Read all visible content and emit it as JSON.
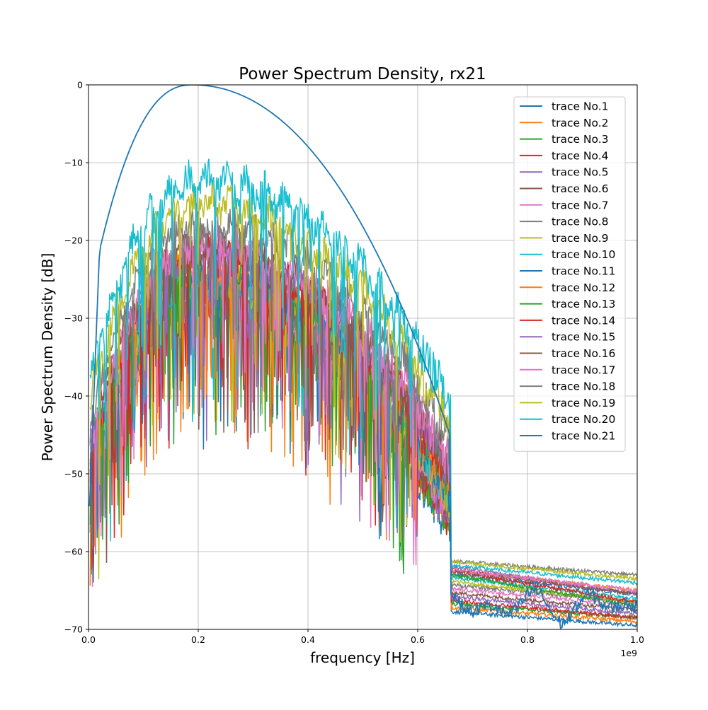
{
  "chart_data": {
    "type": "line",
    "title": "Power Spectrum Density, rx21",
    "xlabel": "frequency [Hz]",
    "ylabel": "Power Spectrum Density [dB]",
    "x_offset_text": "1e9",
    "xlim": [
      0.0,
      1.0
    ],
    "ylim": [
      -70,
      0
    ],
    "x_ticks": [
      0.0,
      0.2,
      0.4,
      0.6,
      0.8,
      1.0
    ],
    "x_tick_labels": [
      "0.0",
      "0.2",
      "0.4",
      "0.6",
      "0.8",
      "1.0"
    ],
    "y_ticks": [
      0,
      -10,
      -20,
      -30,
      -40,
      -50,
      -60,
      -70
    ],
    "y_tick_labels": [
      "0",
      "−10",
      "−20",
      "−30",
      "−40",
      "−50",
      "−60",
      "−70"
    ],
    "grid": true,
    "legend_position": "top-right",
    "series": [
      {
        "name": "trace No.1",
        "color": "#1f77b4",
        "peak": -27.0,
        "tail_start": -67.5,
        "tail_end": -69.5
      },
      {
        "name": "trace No.2",
        "color": "#ff7f0e",
        "peak": -26.5,
        "tail_start": -67.0,
        "tail_end": -69.0
      },
      {
        "name": "trace No.3",
        "color": "#2ca02c",
        "peak": -26.0,
        "tail_start": -66.5,
        "tail_end": -68.5
      },
      {
        "name": "trace No.4",
        "color": "#d62728",
        "peak": -25.5,
        "tail_start": -66.0,
        "tail_end": -68.5
      },
      {
        "name": "trace No.5",
        "color": "#9467bd",
        "peak": -25.0,
        "tail_start": -65.5,
        "tail_end": -68.0
      },
      {
        "name": "trace No.6",
        "color": "#8c564b",
        "peak": -24.5,
        "tail_start": -65.0,
        "tail_end": -67.5
      },
      {
        "name": "trace No.7",
        "color": "#e377c2",
        "peak": -24.0,
        "tail_start": -64.5,
        "tail_end": -67.0
      },
      {
        "name": "trace No.8",
        "color": "#7f7f7f",
        "peak": -23.5,
        "tail_start": -64.0,
        "tail_end": -66.5
      },
      {
        "name": "trace No.9",
        "color": "#bcbd22",
        "peak": -23.0,
        "tail_start": -63.5,
        "tail_end": -66.5
      },
      {
        "name": "trace No.10",
        "color": "#17becf",
        "peak": -22.5,
        "tail_start": -63.0,
        "tail_end": -66.0
      },
      {
        "name": "trace No.11",
        "color": "#1f77b4",
        "peak": -22.0,
        "tail_start": -62.5,
        "tail_end": -65.5
      },
      {
        "name": "trace No.12",
        "color": "#ff7f0e",
        "peak": -21.0,
        "tail_start": -62.0,
        "tail_end": -65.0
      },
      {
        "name": "trace No.13",
        "color": "#2ca02c",
        "peak": -20.5,
        "tail_start": -62.5,
        "tail_end": -67.0
      },
      {
        "name": "trace No.14",
        "color": "#d62728",
        "peak": -20.0,
        "tail_start": -62.0,
        "tail_end": -66.5
      },
      {
        "name": "trace No.15",
        "color": "#9467bd",
        "peak": -19.5,
        "tail_start": -61.5,
        "tail_end": -65.5
      },
      {
        "name": "trace No.16",
        "color": "#8c564b",
        "peak": -19.0,
        "tail_start": -62.0,
        "tail_end": -65.5
      },
      {
        "name": "trace No.17",
        "color": "#e377c2",
        "peak": -18.5,
        "tail_start": -62.0,
        "tail_end": -65.0
      },
      {
        "name": "trace No.18",
        "color": "#7f7f7f",
        "peak": -16.0,
        "tail_start": -61.0,
        "tail_end": -63.0
      },
      {
        "name": "trace No.19",
        "color": "#bcbd22",
        "peak": -13.5,
        "tail_start": -61.0,
        "tail_end": -63.5
      },
      {
        "name": "trace No.20",
        "color": "#17becf",
        "peak": -10.5,
        "tail_start": -61.5,
        "tail_end": -64.0
      },
      {
        "name": "trace No.21",
        "color": "#1f77b4",
        "peak": 0.0,
        "tail_start": -67.0,
        "tail_end": -66.0
      }
    ]
  }
}
